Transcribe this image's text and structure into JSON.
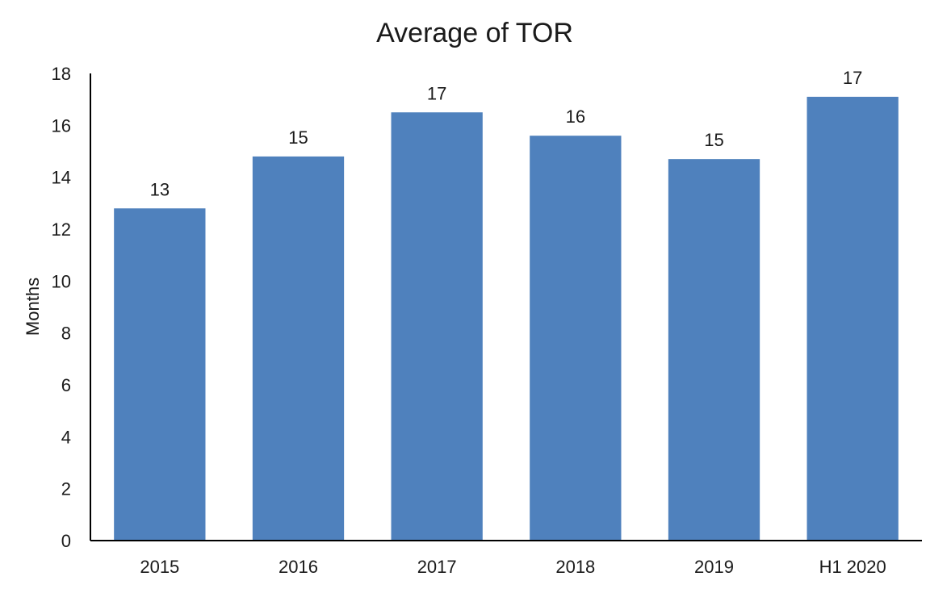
{
  "chart_data": {
    "type": "bar",
    "title": "Average of TOR",
    "xlabel": "",
    "ylabel": "Months",
    "categories": [
      "2015",
      "2016",
      "2017",
      "2018",
      "2019",
      "H1 2020"
    ],
    "values": [
      12.8,
      14.8,
      16.5,
      15.6,
      14.7,
      17.1
    ],
    "data_labels": [
      "13",
      "15",
      "17",
      "16",
      "15",
      "17"
    ],
    "ylim": [
      0,
      18
    ],
    "yticks": [
      0,
      2,
      4,
      6,
      8,
      10,
      12,
      14,
      16,
      18
    ],
    "grid": false,
    "legend": "none",
    "bar_color": "#4F81BD"
  }
}
